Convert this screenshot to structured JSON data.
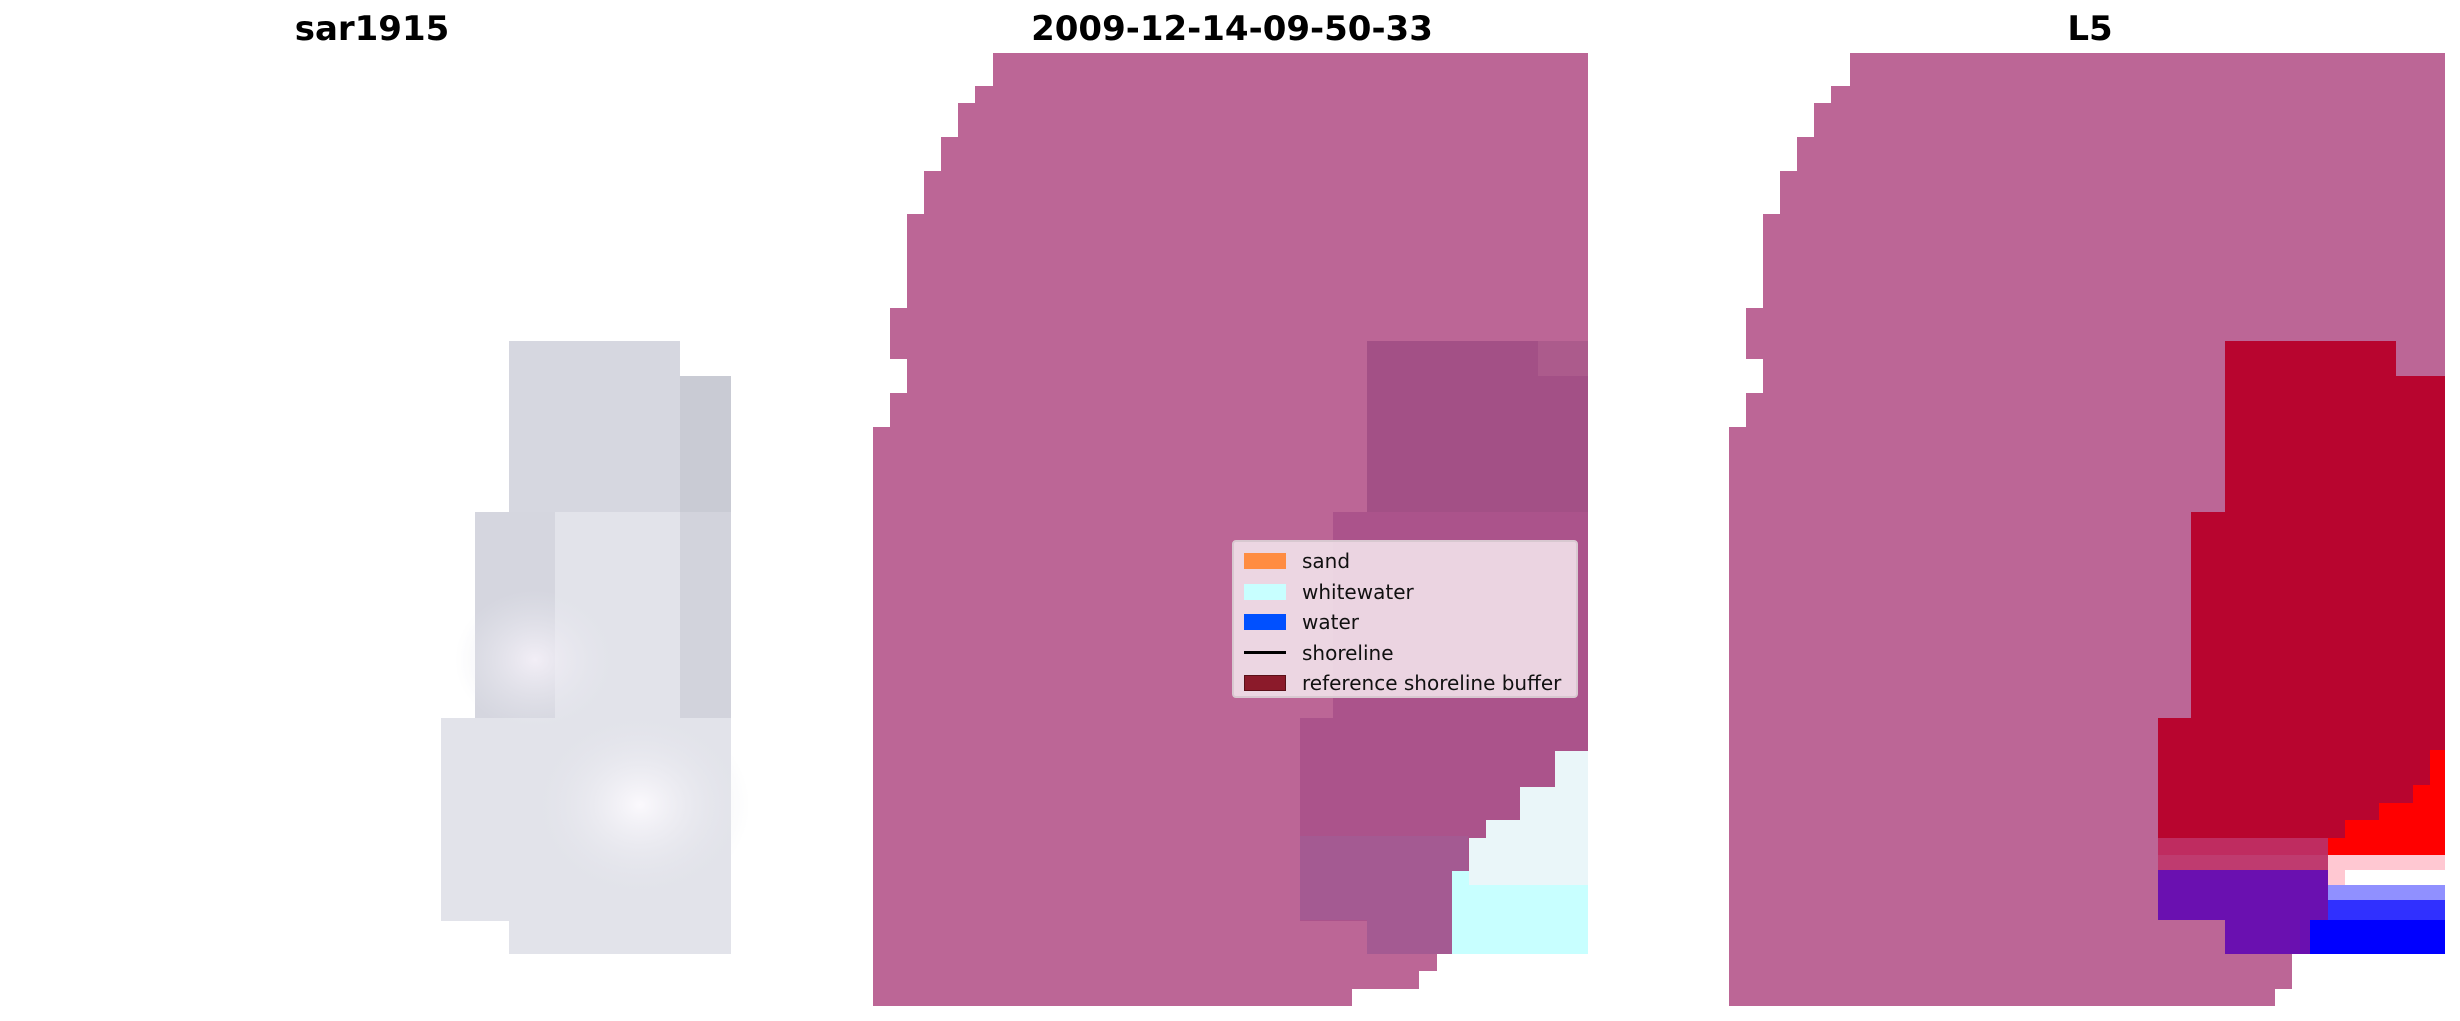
{
  "panels": [
    {
      "title": "sar1915"
    },
    {
      "title": "2009-12-14-09-50-33"
    },
    {
      "title": "L5"
    }
  ],
  "legend": {
    "items": [
      {
        "label": "sand",
        "color": "#ff8c42",
        "kind": "patch"
      },
      {
        "label": "whitewater",
        "color": "#c8ffff",
        "kind": "patch"
      },
      {
        "label": "water",
        "color": "#0050ff",
        "kind": "patch"
      },
      {
        "label": "shoreline",
        "color": "#000000",
        "kind": "line"
      },
      {
        "label": "reference shoreline buffer",
        "color": "#8b1a2a",
        "kind": "patch"
      }
    ]
  },
  "colors": {
    "mask": "#bc6696",
    "image_gray": "#dadbe4",
    "buffer_tint": "#a8508a",
    "whitewater": "#c8ffff",
    "water_blue": "#0000ff",
    "index_red": "#b8002e",
    "index_purple": "#5a00a0"
  }
}
